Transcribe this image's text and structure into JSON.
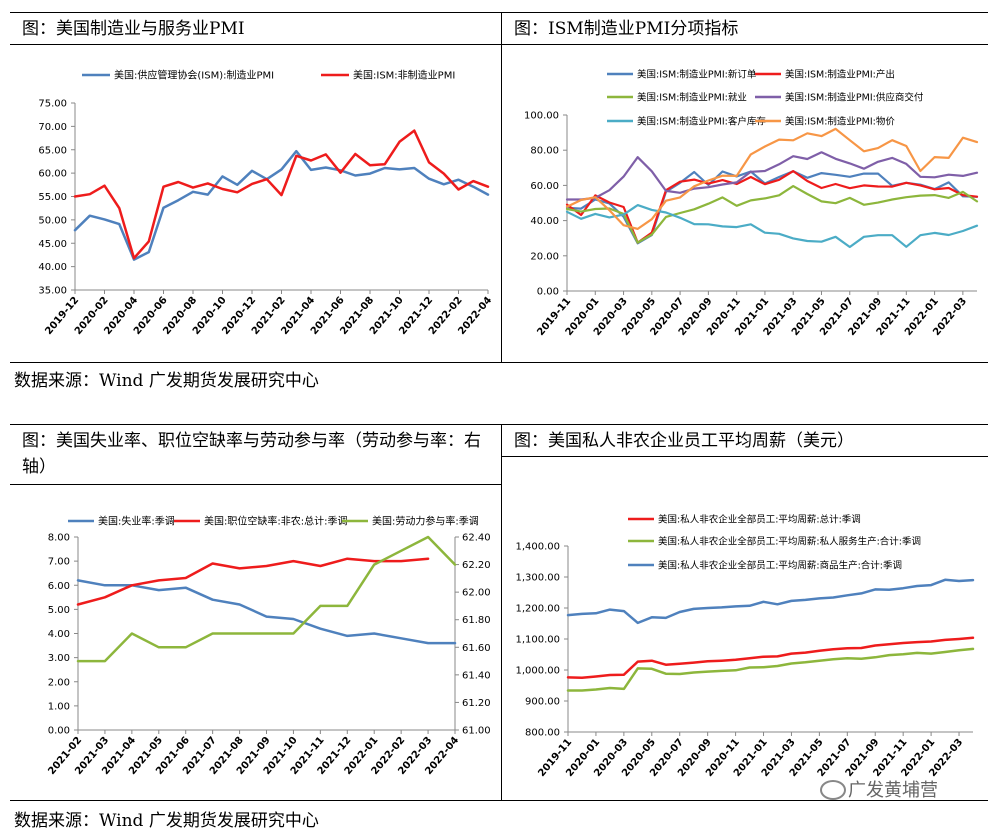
{
  "panels": {
    "p1_title": "图：美国制造业与服务业PMI",
    "p2_title": "图：ISM制造业PMI分项指标",
    "p3_title": "图：美国失业率、职位空缺率与劳动参与率（劳动参与率：右轴）",
    "p4_title": "图：美国私人非农企业员工平均周薪（美元）"
  },
  "source_top": "数据来源：Wind  广发期货发展研究中心",
  "source_bottom": "数据来源：Wind  广发期货发展研究中心",
  "watermark": "广发黄埔营",
  "chart_data": [
    {
      "id": "pmi",
      "type": "line",
      "x": [
        "2019-12",
        "2020-01",
        "2020-02",
        "2020-03",
        "2020-04",
        "2020-05",
        "2020-06",
        "2020-07",
        "2020-08",
        "2020-09",
        "2020-10",
        "2020-11",
        "2020-12",
        "2021-01",
        "2021-02",
        "2021-03",
        "2021-04",
        "2021-05",
        "2021-06",
        "2021-07",
        "2021-08",
        "2021-09",
        "2021-10",
        "2021-11",
        "2021-12",
        "2022-01",
        "2022-02",
        "2022-03",
        "2022-04"
      ],
      "xticks": [
        "2019-12",
        "2020-02",
        "2020-04",
        "2020-06",
        "2020-08",
        "2020-10",
        "2020-12",
        "2021-02",
        "2021-04",
        "2021-06",
        "2021-08",
        "2021-10",
        "2021-12",
        "2022-02",
        "2022-04"
      ],
      "ylim": [
        35,
        75
      ],
      "ystep": 5,
      "ydecimals": 2,
      "legend_position": "top",
      "series": [
        {
          "name": "美国:供应管理协会(ISM):制造业PMI",
          "color": "#4f81bd",
          "values": [
            47.8,
            50.9,
            50.1,
            49.1,
            41.5,
            43.1,
            52.6,
            54.2,
            56.0,
            55.4,
            59.3,
            57.5,
            60.5,
            58.7,
            60.8,
            64.7,
            60.7,
            61.2,
            60.6,
            59.5,
            59.9,
            61.1,
            60.8,
            61.1,
            58.8,
            57.6,
            58.6,
            57.1,
            55.4
          ]
        },
        {
          "name": "美国:ISM:非制造业PMI",
          "color": "#ee1c1c",
          "values": [
            55.0,
            55.5,
            57.3,
            52.5,
            41.8,
            45.4,
            57.1,
            58.1,
            56.9,
            57.8,
            56.6,
            55.9,
            57.7,
            58.7,
            55.3,
            63.7,
            62.7,
            64.0,
            60.1,
            64.1,
            61.7,
            61.9,
            66.7,
            69.1,
            62.3,
            59.9,
            56.5,
            58.3,
            57.1
          ]
        }
      ]
    },
    {
      "id": "ism_sub",
      "type": "line",
      "x": [
        "2019-11",
        "2019-12",
        "2020-01",
        "2020-02",
        "2020-03",
        "2020-04",
        "2020-05",
        "2020-06",
        "2020-07",
        "2020-08",
        "2020-09",
        "2020-10",
        "2020-11",
        "2020-12",
        "2021-01",
        "2021-02",
        "2021-03",
        "2021-04",
        "2021-05",
        "2021-06",
        "2021-07",
        "2021-08",
        "2021-09",
        "2021-10",
        "2021-11",
        "2021-12",
        "2022-01",
        "2022-02",
        "2022-03",
        "2022-04"
      ],
      "xticks": [
        "2019-11",
        "2020-01",
        "2020-03",
        "2020-05",
        "2020-07",
        "2020-09",
        "2020-11",
        "2021-01",
        "2021-03",
        "2021-05",
        "2021-07",
        "2021-09",
        "2021-11",
        "2022-01",
        "2022-03"
      ],
      "ylim": [
        0,
        100
      ],
      "ystep": 20,
      "ydecimals": 2,
      "legend_position": "top",
      "series": [
        {
          "name": "美国:ISM:制造业PMI:新订单",
          "color": "#4f81bd",
          "values": [
            47.2,
            46.8,
            52.0,
            49.8,
            42.2,
            27.1,
            31.8,
            56.4,
            61.5,
            67.6,
            60.2,
            67.9,
            65.1,
            67.9,
            61.1,
            64.8,
            68.0,
            64.3,
            67.0,
            66.0,
            64.9,
            66.7,
            66.7,
            59.8,
            61.5,
            60.4,
            57.9,
            61.7,
            53.8,
            53.5
          ]
        },
        {
          "name": "美国:ISM:制造业PMI:产出",
          "color": "#ee1c1c",
          "values": [
            49.1,
            43.2,
            54.3,
            50.3,
            47.7,
            27.5,
            33.2,
            57.3,
            62.1,
            63.3,
            61.0,
            63.0,
            60.8,
            64.8,
            60.7,
            63.2,
            68.1,
            62.5,
            58.5,
            60.8,
            58.4,
            60.0,
            59.4,
            59.3,
            61.5,
            60.0,
            57.8,
            58.5,
            54.5,
            53.6
          ]
        },
        {
          "name": "美国:ISM:制造业PMI:就业",
          "color": "#8db63c",
          "values": [
            46.6,
            45.1,
            46.6,
            46.9,
            43.8,
            27.5,
            32.1,
            42.1,
            44.3,
            46.4,
            49.6,
            53.2,
            48.4,
            51.5,
            52.6,
            54.4,
            59.6,
            55.1,
            50.9,
            49.9,
            52.9,
            49.0,
            50.2,
            52.0,
            53.3,
            54.2,
            54.5,
            52.9,
            56.3,
            50.9
          ]
        },
        {
          "name": "美国:ISM:制造业PMI:供应商交付",
          "color": "#7f5fa8",
          "values": [
            52.0,
            52.0,
            52.9,
            57.3,
            65.0,
            76.0,
            68.0,
            56.9,
            55.8,
            58.2,
            59.0,
            60.5,
            61.7,
            67.7,
            68.2,
            72.0,
            76.6,
            75.0,
            78.8,
            75.1,
            72.5,
            69.5,
            73.4,
            75.6,
            72.2,
            64.9,
            64.6,
            66.1,
            65.4,
            67.2
          ]
        },
        {
          "name": "美国:ISM:制造业PMI:客户库存",
          "color": "#4bacc6",
          "values": [
            45.0,
            41.0,
            43.8,
            41.8,
            43.4,
            48.8,
            46.1,
            44.6,
            41.6,
            38.0,
            37.9,
            36.7,
            36.3,
            37.9,
            33.1,
            32.5,
            29.9,
            28.4,
            28.0,
            30.8,
            25.0,
            30.8,
            31.7,
            31.7,
            25.1,
            31.7,
            33.0,
            31.8,
            34.1,
            37.1
          ]
        },
        {
          "name": "美国:ISM:制造业PMI:物价",
          "color": "#f79646",
          "values": [
            47.9,
            51.7,
            53.3,
            45.9,
            37.4,
            35.3,
            40.8,
            51.3,
            53.2,
            59.5,
            62.8,
            65.5,
            65.4,
            77.6,
            82.1,
            86.0,
            85.6,
            89.6,
            88.0,
            92.1,
            85.7,
            79.4,
            81.2,
            85.7,
            82.4,
            68.2,
            76.1,
            75.6,
            87.1,
            84.6
          ]
        }
      ]
    },
    {
      "id": "labor",
      "type": "line",
      "x": [
        "2021-02",
        "2021-03",
        "2021-04",
        "2021-05",
        "2021-06",
        "2021-07",
        "2021-08",
        "2021-09",
        "2021-10",
        "2021-11",
        "2021-12",
        "2022-01",
        "2022-02",
        "2022-03",
        "2022-04"
      ],
      "xticks": [
        "2021-02",
        "2021-03",
        "2021-04",
        "2021-05",
        "2021-06",
        "2021-07",
        "2021-08",
        "2021-09",
        "2021-10",
        "2021-11",
        "2021-12",
        "2022-01",
        "2022-02",
        "2022-03",
        "2022-04"
      ],
      "ylim": [
        0,
        8
      ],
      "ystep": 1,
      "ydecimals": 2,
      "y2lim": [
        61.0,
        62.4
      ],
      "y2step": 0.2,
      "legend_position": "top",
      "series": [
        {
          "name": "美国:失业率:季调",
          "color": "#4f81bd",
          "axis": "left",
          "values": [
            6.2,
            6.0,
            6.0,
            5.8,
            5.9,
            5.4,
            5.2,
            4.7,
            4.6,
            4.2,
            3.9,
            4.0,
            3.8,
            3.6,
            3.6
          ]
        },
        {
          "name": "美国:职位空缺率:非农:总计:季调",
          "color": "#ee1c1c",
          "axis": "left",
          "values": [
            5.2,
            5.5,
            6.0,
            6.2,
            6.3,
            6.9,
            6.7,
            6.8,
            7.0,
            6.8,
            7.1,
            7.0,
            7.0,
            7.1,
            null
          ]
        },
        {
          "name": "美国:劳动力参与率:季调",
          "color": "#8db63c",
          "axis": "right",
          "values": [
            61.5,
            61.5,
            61.7,
            61.6,
            61.6,
            61.7,
            61.7,
            61.7,
            61.7,
            61.9,
            61.9,
            62.2,
            62.3,
            62.4,
            62.2
          ]
        }
      ]
    },
    {
      "id": "earnings",
      "type": "line",
      "x": [
        "2019-11",
        "2019-12",
        "2020-01",
        "2020-02",
        "2020-03",
        "2020-04",
        "2020-05",
        "2020-06",
        "2020-07",
        "2020-08",
        "2020-09",
        "2020-10",
        "2020-11",
        "2020-12",
        "2021-01",
        "2021-02",
        "2021-03",
        "2021-04",
        "2021-05",
        "2021-06",
        "2021-07",
        "2021-08",
        "2021-09",
        "2021-10",
        "2021-11",
        "2021-12",
        "2022-01",
        "2022-02",
        "2022-03",
        "2022-04"
      ],
      "xticks": [
        "2019-11",
        "2020-01",
        "2020-03",
        "2020-05",
        "2020-07",
        "2020-09",
        "2020-11",
        "2021-01",
        "2021-03",
        "2021-05",
        "2021-07",
        "2021-09",
        "2021-11",
        "2022-01",
        "2022-03"
      ],
      "ylim": [
        800,
        1400
      ],
      "ystep": 100,
      "ydecimals": 2,
      "ythousands": true,
      "legend_position": "top",
      "series": [
        {
          "name": "美国:私人非农企业全部员工:平均周薪:总计:季调",
          "color": "#ee1c1c",
          "values": [
            976,
            975,
            979,
            984,
            985,
            1027,
            1030,
            1017,
            1020,
            1024,
            1028,
            1030,
            1033,
            1038,
            1043,
            1044,
            1053,
            1056,
            1062,
            1067,
            1070,
            1071,
            1079,
            1083,
            1087,
            1090,
            1092,
            1097,
            1100,
            1104
          ]
        },
        {
          "name": "美国:私人非农企业全部员工:平均周薪:私人服务生产:合计:季调",
          "color": "#8db63c",
          "values": [
            934,
            934,
            937,
            942,
            939,
            1005,
            1004,
            988,
            987,
            992,
            995,
            997,
            999,
            1008,
            1009,
            1013,
            1021,
            1025,
            1030,
            1035,
            1038,
            1036,
            1041,
            1048,
            1051,
            1055,
            1053,
            1058,
            1064,
            1068
          ]
        },
        {
          "name": "美国:私人非农企业全部员工:平均周薪:商品生产:合计:季调",
          "color": "#4f81bd",
          "values": [
            1177,
            1181,
            1183,
            1195,
            1190,
            1152,
            1170,
            1168,
            1187,
            1197,
            1200,
            1202,
            1205,
            1207,
            1220,
            1212,
            1223,
            1226,
            1231,
            1234,
            1241,
            1247,
            1260,
            1259,
            1264,
            1271,
            1274,
            1291,
            1287,
            1290
          ]
        }
      ]
    }
  ]
}
